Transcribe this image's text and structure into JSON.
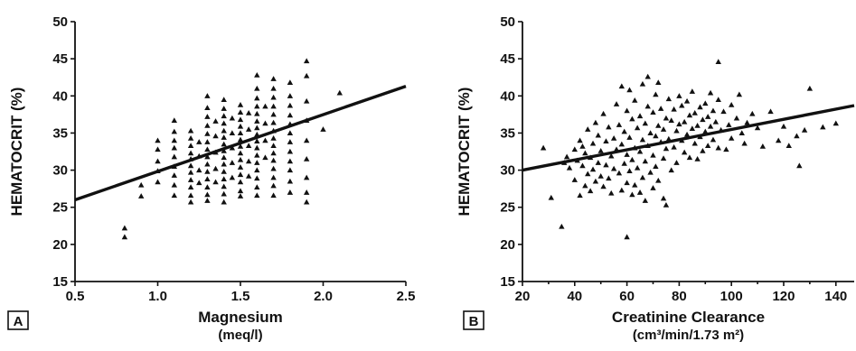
{
  "chart_data": [
    {
      "type": "scatter",
      "panel_label": "A",
      "xlabel": "Magnesium",
      "xunit": "(meq/l)",
      "ylabel": "HEMATOCRIT (%)",
      "xlim": [
        0.5,
        2.5
      ],
      "ylim": [
        15,
        50
      ],
      "xticks": [
        0.5,
        1.0,
        1.5,
        2.0,
        2.5
      ],
      "xtick_labels": [
        "0.5",
        "1.0",
        "1.5",
        "2.0",
        "2.5"
      ],
      "yticks": [
        15,
        20,
        25,
        30,
        35,
        40,
        45,
        50
      ],
      "ytick_labels": [
        "15",
        "20",
        "25",
        "30",
        "35",
        "40",
        "45",
        "50"
      ],
      "marker": "triangle",
      "fit_line": {
        "x": [
          0.5,
          2.5
        ],
        "y": [
          26.0,
          41.3
        ]
      },
      "points": [
        [
          0.8,
          22.2
        ],
        [
          0.8,
          21.0
        ],
        [
          0.9,
          28.0
        ],
        [
          0.9,
          26.5
        ],
        [
          1.0,
          34.0
        ],
        [
          1.0,
          32.8
        ],
        [
          1.0,
          31.2
        ],
        [
          1.0,
          29.9
        ],
        [
          1.0,
          28.4
        ],
        [
          1.1,
          36.7
        ],
        [
          1.1,
          35.2
        ],
        [
          1.1,
          34.0
        ],
        [
          1.1,
          33.0
        ],
        [
          1.1,
          31.8
        ],
        [
          1.1,
          30.5
        ],
        [
          1.1,
          29.3
        ],
        [
          1.1,
          28.0
        ],
        [
          1.1,
          26.6
        ],
        [
          1.2,
          35.3
        ],
        [
          1.2,
          34.3
        ],
        [
          1.2,
          33.3
        ],
        [
          1.2,
          32.3
        ],
        [
          1.2,
          31.5
        ],
        [
          1.2,
          30.6
        ],
        [
          1.2,
          29.7
        ],
        [
          1.2,
          28.7
        ],
        [
          1.2,
          27.7
        ],
        [
          1.2,
          26.6
        ],
        [
          1.2,
          25.7
        ],
        [
          1.25,
          33.8
        ],
        [
          1.25,
          31.9
        ],
        [
          1.25,
          30.0
        ],
        [
          1.25,
          28.3
        ],
        [
          1.3,
          40.0
        ],
        [
          1.3,
          38.4
        ],
        [
          1.3,
          37.2
        ],
        [
          1.3,
          36.0
        ],
        [
          1.3,
          34.9
        ],
        [
          1.3,
          33.8
        ],
        [
          1.3,
          32.8
        ],
        [
          1.3,
          31.8
        ],
        [
          1.3,
          30.8
        ],
        [
          1.3,
          29.8
        ],
        [
          1.3,
          28.8
        ],
        [
          1.3,
          27.7
        ],
        [
          1.3,
          26.7
        ],
        [
          1.3,
          25.9
        ],
        [
          1.35,
          36.6
        ],
        [
          1.35,
          34.6
        ],
        [
          1.35,
          32.4
        ],
        [
          1.35,
          30.2
        ],
        [
          1.35,
          28.4
        ],
        [
          1.4,
          39.5
        ],
        [
          1.4,
          38.3
        ],
        [
          1.4,
          37.3
        ],
        [
          1.4,
          36.3
        ],
        [
          1.4,
          35.3
        ],
        [
          1.4,
          34.4
        ],
        [
          1.4,
          33.5
        ],
        [
          1.4,
          32.6
        ],
        [
          1.4,
          31.7
        ],
        [
          1.4,
          30.8
        ],
        [
          1.4,
          29.8
        ],
        [
          1.4,
          28.8
        ],
        [
          1.4,
          27.8
        ],
        [
          1.4,
          26.8
        ],
        [
          1.4,
          25.7
        ],
        [
          1.45,
          37.0
        ],
        [
          1.45,
          35.0
        ],
        [
          1.45,
          33.0
        ],
        [
          1.45,
          31.0
        ],
        [
          1.45,
          29.0
        ],
        [
          1.5,
          38.8
        ],
        [
          1.5,
          37.8
        ],
        [
          1.5,
          36.8
        ],
        [
          1.5,
          35.9
        ],
        [
          1.5,
          35.0
        ],
        [
          1.5,
          34.1
        ],
        [
          1.5,
          33.2
        ],
        [
          1.5,
          32.3
        ],
        [
          1.5,
          31.4
        ],
        [
          1.5,
          30.4
        ],
        [
          1.5,
          29.4
        ],
        [
          1.5,
          28.4
        ],
        [
          1.5,
          27.2
        ],
        [
          1.5,
          26.5
        ],
        [
          1.55,
          37.7
        ],
        [
          1.55,
          35.5
        ],
        [
          1.55,
          33.3
        ],
        [
          1.55,
          31.2
        ],
        [
          1.55,
          29.2
        ],
        [
          1.6,
          42.8
        ],
        [
          1.6,
          41.0
        ],
        [
          1.6,
          39.7
        ],
        [
          1.6,
          38.6
        ],
        [
          1.6,
          37.6
        ],
        [
          1.6,
          36.6
        ],
        [
          1.6,
          35.7
        ],
        [
          1.6,
          34.8
        ],
        [
          1.6,
          33.9
        ],
        [
          1.6,
          33.0
        ],
        [
          1.6,
          32.0
        ],
        [
          1.6,
          31.0
        ],
        [
          1.6,
          30.0
        ],
        [
          1.6,
          28.9
        ],
        [
          1.6,
          27.7
        ],
        [
          1.6,
          26.6
        ],
        [
          1.65,
          38.6
        ],
        [
          1.65,
          36.3
        ],
        [
          1.65,
          34.0
        ],
        [
          1.65,
          31.7
        ],
        [
          1.7,
          42.3
        ],
        [
          1.7,
          41.0
        ],
        [
          1.7,
          39.8
        ],
        [
          1.7,
          38.6
        ],
        [
          1.7,
          37.5
        ],
        [
          1.7,
          36.4
        ],
        [
          1.7,
          35.3
        ],
        [
          1.7,
          34.3
        ],
        [
          1.7,
          33.3
        ],
        [
          1.7,
          32.3
        ],
        [
          1.7,
          31.3
        ],
        [
          1.7,
          30.2
        ],
        [
          1.7,
          29.0
        ],
        [
          1.7,
          27.9
        ],
        [
          1.7,
          26.6
        ],
        [
          1.8,
          41.8
        ],
        [
          1.8,
          40.0
        ],
        [
          1.8,
          38.7
        ],
        [
          1.8,
          37.4
        ],
        [
          1.8,
          36.2
        ],
        [
          1.8,
          35.0
        ],
        [
          1.8,
          33.8
        ],
        [
          1.8,
          32.5
        ],
        [
          1.8,
          31.2
        ],
        [
          1.8,
          30.0
        ],
        [
          1.8,
          28.5
        ],
        [
          1.8,
          27.0
        ],
        [
          1.9,
          44.7
        ],
        [
          1.9,
          42.7
        ],
        [
          1.9,
          39.3
        ],
        [
          1.9,
          36.7
        ],
        [
          1.9,
          34.0
        ],
        [
          1.9,
          31.5
        ],
        [
          1.9,
          29.0
        ],
        [
          1.9,
          27.0
        ],
        [
          1.9,
          25.7
        ],
        [
          2.0,
          35.5
        ],
        [
          2.1,
          40.4
        ]
      ]
    },
    {
      "type": "scatter",
      "panel_label": "B",
      "xlabel": "Creatinine Clearance",
      "xunit": "(cm³/min/1.73 m²)",
      "ylabel": "HEMATOCRIT (%)",
      "xlim": [
        20,
        147
      ],
      "ylim": [
        15,
        50
      ],
      "xticks": [
        20,
        40,
        60,
        80,
        100,
        120,
        140
      ],
      "xtick_labels": [
        "20",
        "40",
        "60",
        "80",
        "100",
        "120",
        "140"
      ],
      "yticks": [
        15,
        20,
        25,
        30,
        35,
        40,
        45,
        50
      ],
      "ytick_labels": [
        "15",
        "20",
        "25",
        "30",
        "35",
        "40",
        "45",
        "50"
      ],
      "marker": "triangle",
      "fit_line": {
        "x": [
          20,
          147
        ],
        "y": [
          30.0,
          38.7
        ]
      },
      "points": [
        [
          28,
          33.0
        ],
        [
          31,
          26.3
        ],
        [
          35,
          22.4
        ],
        [
          36,
          31.0
        ],
        [
          37,
          31.8
        ],
        [
          38,
          30.3
        ],
        [
          40,
          32.8
        ],
        [
          40,
          28.7
        ],
        [
          41,
          31.3
        ],
        [
          42,
          34.0
        ],
        [
          42,
          26.6
        ],
        [
          43,
          30.6
        ],
        [
          43,
          33.2
        ],
        [
          44,
          27.9
        ],
        [
          44,
          32.3
        ],
        [
          45,
          35.5
        ],
        [
          45,
          29.5
        ],
        [
          46,
          31.7
        ],
        [
          46,
          27.2
        ],
        [
          47,
          33.6
        ],
        [
          47,
          30.1
        ],
        [
          48,
          28.5
        ],
        [
          48,
          36.4
        ],
        [
          49,
          31.0
        ],
        [
          49,
          34.7
        ],
        [
          50,
          29.2
        ],
        [
          50,
          32.6
        ],
        [
          51,
          37.6
        ],
        [
          51,
          27.8
        ],
        [
          52,
          30.7
        ],
        [
          52,
          33.9
        ],
        [
          53,
          35.8
        ],
        [
          53,
          28.9
        ],
        [
          54,
          31.9
        ],
        [
          54,
          26.9
        ],
        [
          55,
          34.3
        ],
        [
          55,
          30.2
        ],
        [
          56,
          38.9
        ],
        [
          56,
          32.8
        ],
        [
          57,
          29.6
        ],
        [
          57,
          36.1
        ],
        [
          58,
          41.3
        ],
        [
          58,
          33.5
        ],
        [
          58,
          27.3
        ],
        [
          59,
          30.9
        ],
        [
          59,
          35.2
        ],
        [
          60,
          38.0
        ],
        [
          60,
          32.1
        ],
        [
          60,
          28.3
        ],
        [
          60,
          21.0
        ],
        [
          61,
          40.8
        ],
        [
          61,
          34.4
        ],
        [
          61,
          29.9
        ],
        [
          62,
          36.9
        ],
        [
          62,
          31.4
        ],
        [
          62,
          26.7
        ],
        [
          63,
          33.0
        ],
        [
          63,
          39.4
        ],
        [
          63,
          28.0
        ],
        [
          64,
          35.7
        ],
        [
          64,
          30.3
        ],
        [
          65,
          37.3
        ],
        [
          65,
          32.5
        ],
        [
          65,
          27.0
        ],
        [
          66,
          34.1
        ],
        [
          66,
          41.6
        ],
        [
          66,
          29.0
        ],
        [
          67,
          36.3
        ],
        [
          67,
          31.2
        ],
        [
          67,
          25.9
        ],
        [
          68,
          38.6
        ],
        [
          68,
          33.3
        ],
        [
          68,
          42.6
        ],
        [
          69,
          35.0
        ],
        [
          69,
          29.7
        ],
        [
          70,
          37.8
        ],
        [
          70,
          32.0
        ],
        [
          70,
          27.6
        ],
        [
          71,
          40.2
        ],
        [
          71,
          34.6
        ],
        [
          71,
          30.5
        ],
        [
          72,
          36.0
        ],
        [
          72,
          41.8
        ],
        [
          72,
          28.6
        ],
        [
          73,
          33.8
        ],
        [
          73,
          38.3
        ],
        [
          74,
          31.6
        ],
        [
          74,
          35.5
        ],
        [
          74,
          26.2
        ],
        [
          75,
          37.0
        ],
        [
          75,
          32.9
        ],
        [
          75,
          25.3
        ],
        [
          76,
          39.6
        ],
        [
          76,
          34.2
        ],
        [
          77,
          30.0
        ],
        [
          77,
          36.7
        ],
        [
          78,
          38.2
        ],
        [
          78,
          33.1
        ],
        [
          79,
          35.3
        ],
        [
          79,
          31.0
        ],
        [
          80,
          40.0
        ],
        [
          80,
          36.2
        ],
        [
          81,
          34.0
        ],
        [
          81,
          38.7
        ],
        [
          82,
          32.4
        ],
        [
          82,
          36.5
        ],
        [
          83,
          39.3
        ],
        [
          83,
          34.8
        ],
        [
          84,
          37.4
        ],
        [
          84,
          31.7
        ],
        [
          85,
          35.6
        ],
        [
          85,
          40.6
        ],
        [
          86,
          33.6
        ],
        [
          86,
          37.7
        ],
        [
          87,
          36.0
        ],
        [
          87,
          31.5
        ],
        [
          88,
          38.5
        ],
        [
          88,
          34.5
        ],
        [
          89,
          36.8
        ],
        [
          89,
          32.6
        ],
        [
          90,
          39.0
        ],
        [
          90,
          35.2
        ],
        [
          91,
          37.2
        ],
        [
          91,
          33.3
        ],
        [
          92,
          40.4
        ],
        [
          92,
          35.9
        ],
        [
          93,
          38.0
        ],
        [
          93,
          34.1
        ],
        [
          94,
          36.5
        ],
        [
          95,
          44.6
        ],
        [
          95,
          39.5
        ],
        [
          95,
          33.0
        ],
        [
          96,
          35.4
        ],
        [
          97,
          37.9
        ],
        [
          98,
          32.8
        ],
        [
          99,
          36.1
        ],
        [
          100,
          38.8
        ],
        [
          100,
          34.3
        ],
        [
          102,
          37.0
        ],
        [
          103,
          40.2
        ],
        [
          104,
          35.0
        ],
        [
          105,
          33.6
        ],
        [
          106,
          36.4
        ],
        [
          108,
          37.6
        ],
        [
          110,
          35.7
        ],
        [
          112,
          33.2
        ],
        [
          115,
          37.9
        ],
        [
          118,
          34.0
        ],
        [
          120,
          35.9
        ],
        [
          122,
          33.3
        ],
        [
          125,
          34.6
        ],
        [
          126,
          30.6
        ],
        [
          128,
          35.4
        ],
        [
          130,
          41.0
        ],
        [
          135,
          35.8
        ],
        [
          140,
          36.3
        ]
      ]
    }
  ]
}
